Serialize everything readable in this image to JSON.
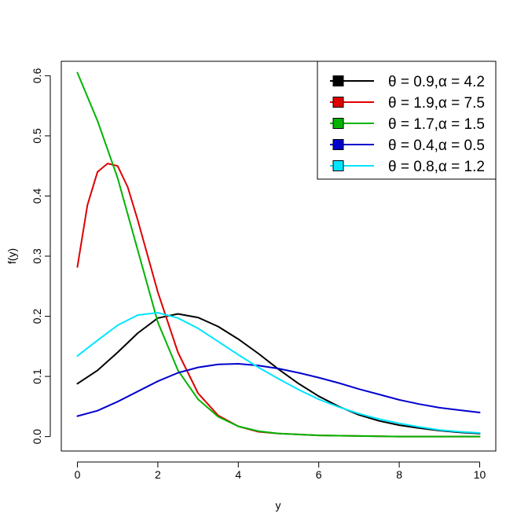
{
  "chart_data": {
    "type": "line",
    "title": "",
    "xlabel": "y",
    "ylabel": "f(y)",
    "xlim": [
      -0.4,
      10.4
    ],
    "ylim": [
      -0.024,
      0.624
    ],
    "x_ticks": [
      0,
      2,
      4,
      6,
      8,
      10
    ],
    "y_ticks": [
      0.0,
      0.1,
      0.2,
      0.3,
      0.4,
      0.5,
      0.6
    ],
    "x_tick_labels": [
      "0",
      "2",
      "4",
      "6",
      "8",
      "10"
    ],
    "y_tick_labels": [
      "0.0",
      "0.1",
      "0.2",
      "0.3",
      "0.4",
      "0.5",
      "0.6"
    ],
    "grid": false,
    "legend_position": "top-right",
    "series": [
      {
        "name": "θ = 0.9,α = 4.2",
        "color": "#000000",
        "x": [
          0,
          0.5,
          1,
          1.5,
          2,
          2.5,
          3,
          3.5,
          4,
          4.5,
          5,
          5.5,
          6,
          6.5,
          7,
          7.5,
          8,
          8.5,
          9,
          9.5,
          10
        ],
        "y": [
          0.088,
          0.11,
          0.14,
          0.172,
          0.197,
          0.204,
          0.198,
          0.183,
          0.162,
          0.138,
          0.112,
          0.088,
          0.067,
          0.05,
          0.036,
          0.026,
          0.019,
          0.014,
          0.01,
          0.007,
          0.005
        ]
      },
      {
        "name": "θ = 1.9,α = 7.5",
        "color": "#df0000",
        "x": [
          0,
          0.25,
          0.5,
          0.75,
          1,
          1.25,
          1.5,
          2,
          2.5,
          3,
          3.5,
          4,
          4.5,
          5,
          6,
          7,
          8,
          9,
          10
        ],
        "y": [
          0.282,
          0.385,
          0.44,
          0.454,
          0.45,
          0.415,
          0.36,
          0.24,
          0.14,
          0.072,
          0.035,
          0.017,
          0.008,
          0.005,
          0.002,
          0.001,
          0.0,
          0.0,
          0.0
        ]
      },
      {
        "name": "θ = 1.7,α = 1.5",
        "color": "#00b400",
        "x": [
          0,
          0.5,
          1,
          1.5,
          2,
          2.5,
          3,
          3.5,
          4,
          4.5,
          5,
          6,
          7,
          8,
          9,
          10
        ],
        "y": [
          0.605,
          0.525,
          0.43,
          0.31,
          0.19,
          0.11,
          0.062,
          0.033,
          0.017,
          0.009,
          0.005,
          0.002,
          0.001,
          0.0,
          0.0,
          0.0
        ]
      },
      {
        "name": "θ = 0.4,α = 0.5",
        "color": "#0000cd",
        "x": [
          0,
          0.5,
          1,
          1.5,
          2,
          2.5,
          3,
          3.5,
          4,
          4.5,
          5,
          5.5,
          6,
          6.5,
          7,
          7.5,
          8,
          8.5,
          9,
          9.5,
          10
        ],
        "y": [
          0.034,
          0.043,
          0.058,
          0.075,
          0.092,
          0.106,
          0.115,
          0.12,
          0.121,
          0.118,
          0.113,
          0.106,
          0.098,
          0.089,
          0.079,
          0.07,
          0.061,
          0.054,
          0.048,
          0.044,
          0.04
        ]
      },
      {
        "name": "θ = 0.8,α = 1.2",
        "color": "#00e5ff",
        "x": [
          0,
          0.5,
          1,
          1.5,
          2,
          2.5,
          3,
          3.5,
          4,
          4.5,
          5,
          5.5,
          6,
          6.5,
          7,
          7.5,
          8,
          8.5,
          9,
          9.5,
          10
        ],
        "y": [
          0.134,
          0.16,
          0.185,
          0.202,
          0.206,
          0.197,
          0.18,
          0.158,
          0.136,
          0.115,
          0.096,
          0.078,
          0.062,
          0.049,
          0.038,
          0.029,
          0.022,
          0.016,
          0.011,
          0.008,
          0.006
        ]
      }
    ]
  }
}
